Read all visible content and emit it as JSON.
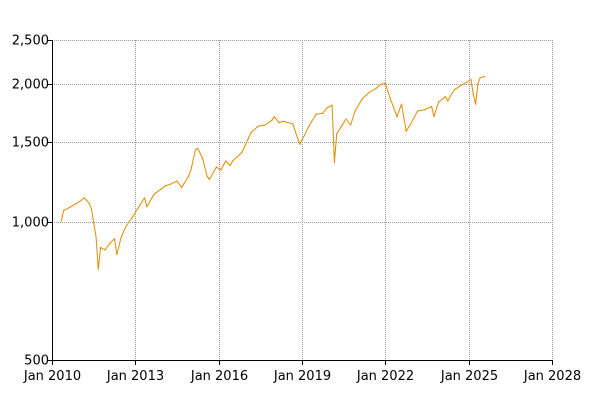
{
  "chart_data": {
    "type": "line",
    "title": "",
    "xlabel": "",
    "ylabel": "",
    "y_scale": "log",
    "ylim": [
      500,
      2500
    ],
    "xlim": [
      "2010-01-01",
      "2028-01-01"
    ],
    "grid": true,
    "legend": "none",
    "y_ticks": [
      {
        "value": 500,
        "label": "500"
      },
      {
        "value": 1000,
        "label": "1,000"
      },
      {
        "value": 1500,
        "label": "1,500"
      },
      {
        "value": 2000,
        "label": "2,000"
      },
      {
        "value": 2500,
        "label": "2,500"
      }
    ],
    "x_ticks": [
      {
        "value": "2010-01-01",
        "label": "Jan 2010"
      },
      {
        "value": "2013-01-01",
        "label": "Jan 2013"
      },
      {
        "value": "2016-01-01",
        "label": "Jan 2016"
      },
      {
        "value": "2019-01-01",
        "label": "Jan 2019"
      },
      {
        "value": "2022-01-01",
        "label": "Jan 2022"
      },
      {
        "value": "2025-01-01",
        "label": "Jan 2025"
      },
      {
        "value": "2028-01-01",
        "label": "Jan 2028"
      }
    ],
    "series": [
      {
        "color": "#e08a00",
        "x": [
          "2010-05",
          "2010-06",
          "2010-09",
          "2011-01",
          "2011-03",
          "2011-05",
          "2011-06",
          "2011-08",
          "2011-09",
          "2011-10",
          "2011-12",
          "2012-02",
          "2012-04",
          "2012-05",
          "2012-07",
          "2012-09",
          "2012-12",
          "2013-02",
          "2013-05",
          "2013-06",
          "2013-09",
          "2013-12",
          "2014-02",
          "2014-04",
          "2014-07",
          "2014-09",
          "2014-12",
          "2015-01",
          "2015-03",
          "2015-04",
          "2015-06",
          "2015-08",
          "2015-09",
          "2015-12",
          "2016-02",
          "2016-04",
          "2016-06",
          "2016-07",
          "2016-11",
          "2017-03",
          "2017-06",
          "2017-09",
          "2017-12",
          "2018-01",
          "2018-03",
          "2018-05",
          "2018-09",
          "2018-12",
          "2019-01",
          "2019-04",
          "2019-07",
          "2019-10",
          "2019-12",
          "2020-02",
          "2020-03",
          "2020-04",
          "2020-06",
          "2020-08",
          "2020-10",
          "2020-12",
          "2021-03",
          "2021-06",
          "2021-09",
          "2021-11",
          "2022-01",
          "2022-03",
          "2022-06",
          "2022-08",
          "2022-10",
          "2022-12",
          "2023-03",
          "2023-06",
          "2023-09",
          "2023-10",
          "2023-12",
          "2024-03",
          "2024-04",
          "2024-06",
          "2024-07",
          "2024-09",
          "2024-12",
          "2025-02",
          "2025-03",
          "2025-04",
          "2025-05",
          "2025-06",
          "2025-08"
        ],
        "values": [
          1005,
          1060,
          1080,
          1110,
          1130,
          1100,
          1070,
          930,
          790,
          880,
          870,
          900,
          920,
          850,
          930,
          980,
          1030,
          1070,
          1130,
          1080,
          1150,
          1180,
          1200,
          1210,
          1230,
          1190,
          1260,
          1300,
          1440,
          1450,
          1380,
          1260,
          1240,
          1320,
          1300,
          1360,
          1330,
          1360,
          1420,
          1570,
          1620,
          1630,
          1670,
          1700,
          1650,
          1660,
          1640,
          1480,
          1510,
          1620,
          1720,
          1730,
          1780,
          1800,
          1350,
          1560,
          1620,
          1680,
          1630,
          1750,
          1860,
          1920,
          1960,
          2000,
          2010,
          1870,
          1700,
          1810,
          1580,
          1640,
          1750,
          1760,
          1790,
          1700,
          1830,
          1880,
          1840,
          1920,
          1950,
          1980,
          2020,
          2050,
          1900,
          1810,
          2000,
          2070,
          2080
        ]
      }
    ]
  }
}
